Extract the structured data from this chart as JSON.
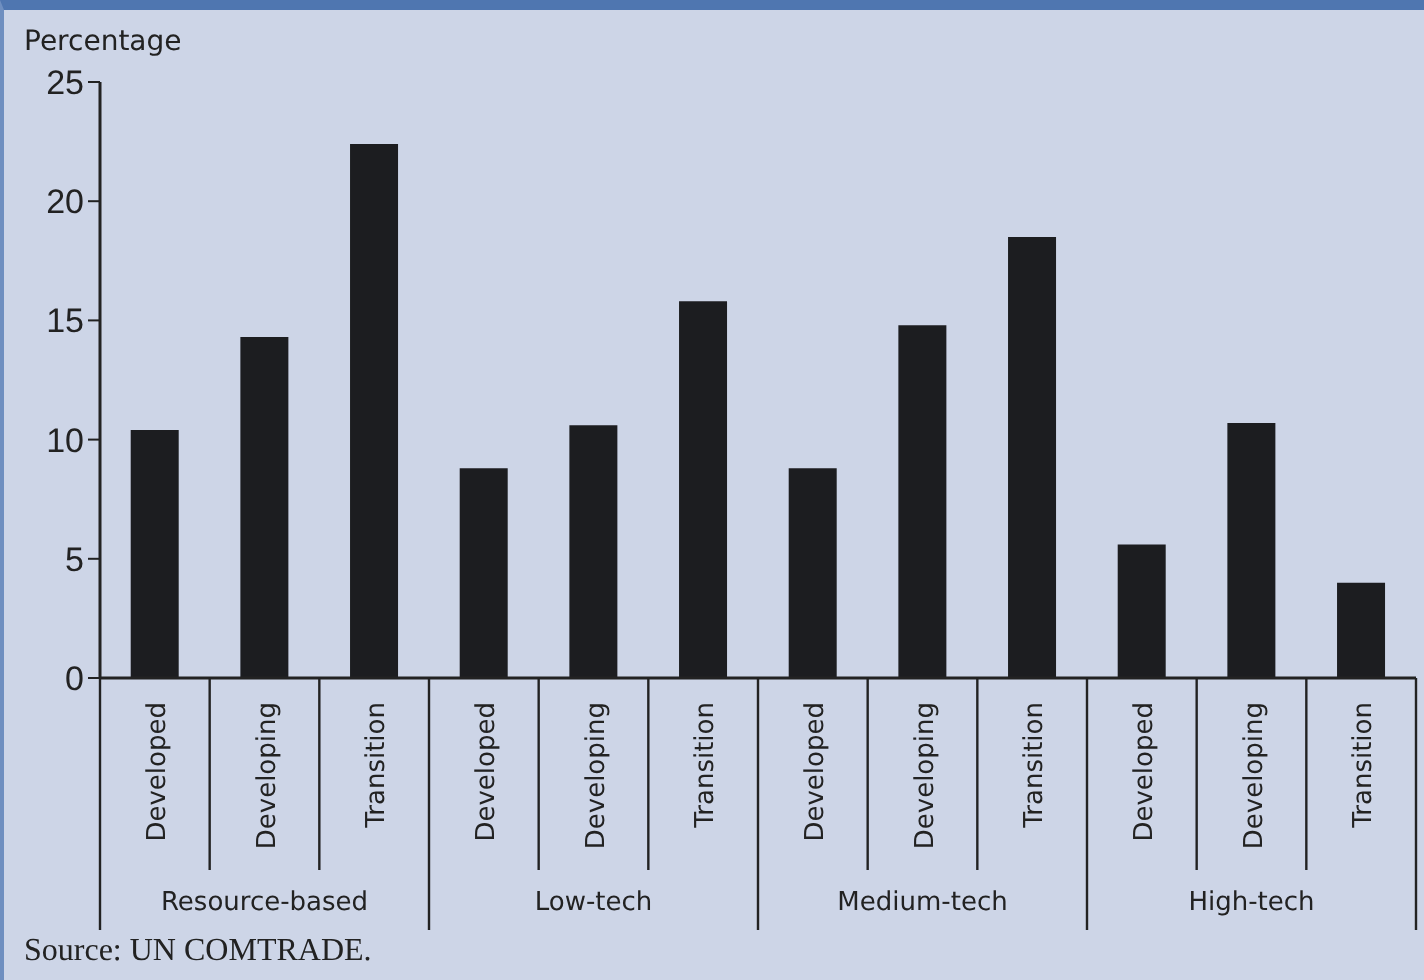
{
  "chart_data": {
    "type": "bar",
    "ylabel": "Percentage",
    "categories": [
      "Developed",
      "Developing",
      "Transition",
      "Developed",
      "Developing",
      "Transition",
      "Developed",
      "Developing",
      "Transition",
      "Developed",
      "Developing",
      "Transition"
    ],
    "values": [
      10.4,
      14.3,
      22.4,
      8.8,
      10.6,
      15.8,
      8.8,
      14.8,
      18.5,
      5.6,
      10.7,
      4.0
    ],
    "color": "#1c1d20",
    "ylim": [
      0,
      25
    ],
    "yticks": [
      0,
      5,
      10,
      15,
      20,
      25
    ],
    "grid": false,
    "legend": false,
    "annotations": [
      "Resource-based",
      "Low-tech",
      "Medium-tech",
      "High-tech",
      "Source: UN COMTRADE."
    ]
  }
}
